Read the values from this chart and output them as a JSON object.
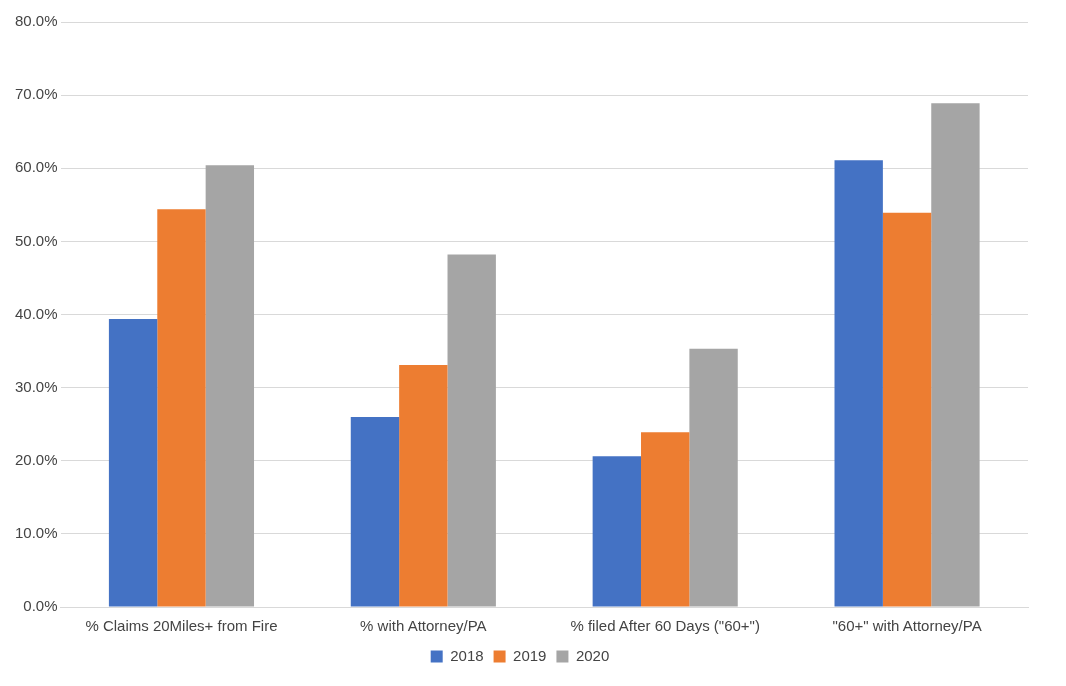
{
  "chart_data": {
    "type": "bar",
    "categories": [
      "% Claims 20Miles+ from Fire",
      "% with Attorney/PA",
      "% filed After 60 Days (\"60+\")",
      "\"60+\" with Attorney/PA"
    ],
    "series": [
      {
        "name": "2018",
        "color": "#4472c4",
        "values": [
          39.4,
          26.0,
          20.6,
          61.1
        ]
      },
      {
        "name": "2019",
        "color": "#ed7d31",
        "values": [
          54.4,
          33.1,
          23.9,
          53.9
        ]
      },
      {
        "name": "2020",
        "color": "#a5a5a5",
        "values": [
          60.4,
          48.2,
          35.3,
          68.9
        ]
      }
    ],
    "ylim": [
      0,
      80
    ],
    "yticks": [
      {
        "value": 0,
        "label": "0.0%"
      },
      {
        "value": 10,
        "label": "10.0%"
      },
      {
        "value": 20,
        "label": "20.0%"
      },
      {
        "value": 30,
        "label": "30.0%"
      },
      {
        "value": 40,
        "label": "40.0%"
      },
      {
        "value": 50,
        "label": "50.0%"
      },
      {
        "value": 60,
        "label": "60.0%"
      },
      {
        "value": 70,
        "label": "70.0%"
      },
      {
        "value": 80,
        "label": "80.0%"
      }
    ],
    "grid": "y",
    "legend": "bottom"
  }
}
